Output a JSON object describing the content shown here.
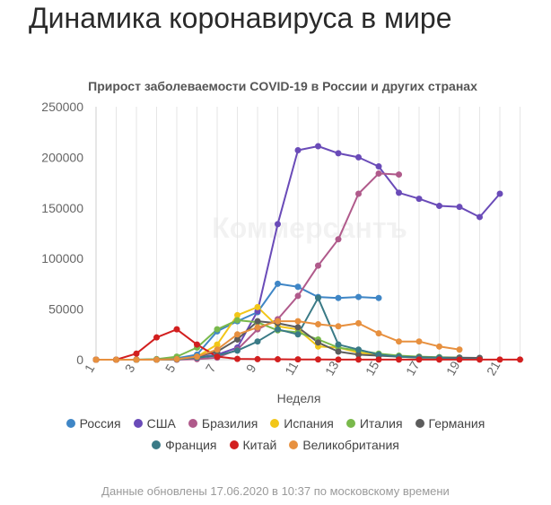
{
  "page": {
    "title": "Динамика коронавируса в мире",
    "footer": "Данные обновлены 17.06.2020 в 10:37 по московскому времени"
  },
  "chart_data": {
    "type": "line",
    "title": "Прирост заболеваемости COVID-19 в России и других странах",
    "xlabel": "Неделя",
    "ylabel": "",
    "watermark": "Коммерсантъ",
    "xlim": [
      1,
      22.2
    ],
    "ylim": [
      0,
      250000
    ],
    "x_ticks": [
      "1",
      "3",
      "5",
      "7",
      "9",
      "11",
      "13",
      "15",
      "17",
      "19",
      "21"
    ],
    "y_ticks": [
      "0",
      "50000",
      "100000",
      "150000",
      "200000",
      "250000"
    ],
    "grid": "vertical",
    "legend_position": "bottom",
    "series": [
      {
        "name": "Россия",
        "color": "#3f86c6",
        "x": [
          1,
          2,
          3,
          4,
          5,
          6,
          7,
          8,
          9,
          10,
          11,
          12,
          13,
          14,
          15
        ],
        "y": [
          0,
          0,
          0,
          500,
          1500,
          5000,
          28000,
          38000,
          47000,
          75000,
          72000,
          62000,
          61000,
          62000,
          61000
        ]
      },
      {
        "name": "США",
        "color": "#6a4bb8",
        "x": [
          1,
          2,
          3,
          4,
          5,
          6,
          7,
          8,
          9,
          10,
          11,
          12,
          13,
          14,
          15,
          16,
          17,
          18,
          19,
          20,
          21
        ],
        "y": [
          0,
          0,
          0,
          0,
          100,
          2000,
          5000,
          12000,
          48000,
          134000,
          207000,
          211000,
          204000,
          200000,
          191000,
          165000,
          159000,
          152000,
          151000,
          141000,
          164000
        ]
      },
      {
        "name": "Бразилия",
        "color": "#b05a8b",
        "x": [
          1,
          2,
          3,
          4,
          5,
          6,
          7,
          8,
          9,
          10,
          11,
          12,
          13,
          14,
          15,
          16
        ],
        "y": [
          0,
          0,
          0,
          0,
          0,
          500,
          2000,
          10000,
          30000,
          40000,
          63000,
          93000,
          119000,
          164000,
          184000,
          183000
        ]
      },
      {
        "name": "Испания",
        "color": "#f2c618",
        "x": [
          1,
          2,
          3,
          4,
          5,
          6,
          7,
          8,
          9,
          10,
          11,
          12,
          13,
          14,
          15,
          16,
          17,
          18,
          19
        ],
        "y": [
          0,
          0,
          0,
          0,
          500,
          3000,
          15000,
          44000,
          52000,
          33000,
          30000,
          13000,
          12000,
          7000,
          5000,
          3000,
          2000,
          2000,
          1500
        ]
      },
      {
        "name": "Италия",
        "color": "#79b94b",
        "x": [
          1,
          2,
          3,
          4,
          5,
          6,
          7,
          8,
          9,
          10,
          11,
          12,
          13,
          14,
          15,
          16,
          17,
          18,
          19
        ],
        "y": [
          0,
          0,
          0,
          500,
          3000,
          12000,
          30000,
          39000,
          37000,
          29000,
          27000,
          20000,
          12000,
          9000,
          6000,
          4000,
          3000,
          2500,
          2000
        ]
      },
      {
        "name": "Германия",
        "color": "#5c5c5c",
        "x": [
          1,
          2,
          3,
          4,
          5,
          6,
          7,
          8,
          9,
          10,
          11,
          12,
          13,
          14,
          15,
          16,
          17,
          18,
          19,
          20
        ],
        "y": [
          0,
          0,
          0,
          0,
          500,
          3000,
          8000,
          20000,
          38000,
          36000,
          32000,
          17000,
          8000,
          5000,
          4000,
          3000,
          2500,
          2000,
          2000,
          1800
        ]
      },
      {
        "name": "Франция",
        "color": "#3a7a86",
        "x": [
          1,
          2,
          3,
          4,
          5,
          6,
          7,
          8,
          9,
          10,
          11,
          12,
          13,
          14,
          15,
          16,
          17,
          18,
          19,
          20
        ],
        "y": [
          0,
          0,
          0,
          0,
          300,
          2000,
          4000,
          9000,
          18000,
          30000,
          25000,
          61000,
          15000,
          10000,
          5000,
          3000,
          2000,
          2000,
          1000,
          500
        ]
      },
      {
        "name": "Китай",
        "color": "#d21f1f",
        "x": [
          1,
          2,
          3,
          4,
          5,
          6,
          7,
          8,
          9,
          10,
          11,
          12,
          13,
          14,
          15,
          16,
          17,
          18,
          19,
          20,
          21,
          22
        ],
        "y": [
          0,
          0,
          6000,
          22000,
          30000,
          15000,
          3000,
          800,
          500,
          400,
          300,
          200,
          100,
          100,
          100,
          100,
          100,
          100,
          100,
          100,
          100,
          100
        ]
      },
      {
        "name": "Великобритания",
        "color": "#e7903f",
        "x": [
          1,
          2,
          3,
          4,
          5,
          6,
          7,
          8,
          9,
          10,
          11,
          12,
          13,
          14,
          15,
          16,
          17,
          18,
          19
        ],
        "y": [
          0,
          0,
          0,
          0,
          500,
          3000,
          10000,
          25000,
          32000,
          38000,
          38000,
          35000,
          33000,
          36000,
          26000,
          18000,
          18000,
          13000,
          10000
        ]
      }
    ]
  }
}
